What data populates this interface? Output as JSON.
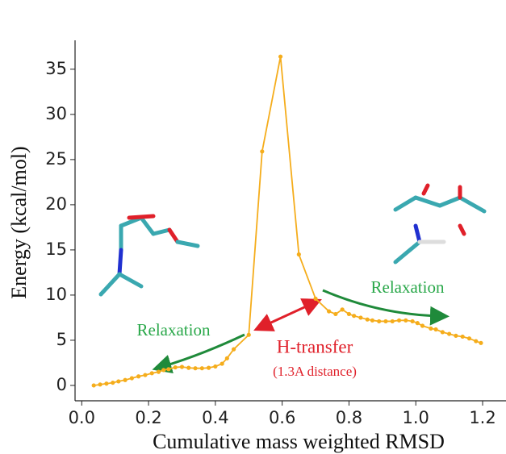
{
  "chart_data": {
    "type": "line",
    "x_label": "Cumulative mass weighted RMSD",
    "y_label": "Energy (kcal/mol)",
    "annotations": [
      "Relaxation",
      "Relaxation",
      "H-transfer",
      "(1.3A distance)"
    ],
    "series": [
      {
        "color": "#f5ad1c",
        "x": [
          0.036,
          0.055,
          0.074,
          0.093,
          0.11,
          0.13,
          0.15,
          0.17,
          0.19,
          0.21,
          0.23,
          0.245,
          0.26,
          0.28,
          0.3,
          0.32,
          0.34,
          0.36,
          0.38,
          0.4,
          0.42,
          0.435,
          0.455,
          0.5,
          0.54,
          0.595,
          0.65,
          0.7,
          0.74,
          0.76,
          0.78,
          0.8,
          0.815,
          0.835,
          0.855,
          0.87,
          0.89,
          0.91,
          0.93,
          0.95,
          0.97,
          0.99,
          1.005,
          1.02,
          1.045,
          1.06,
          1.08,
          1.1,
          1.12,
          1.14,
          1.16,
          1.18,
          1.195
        ],
        "values": [
          0,
          0.1,
          0.2,
          0.3,
          0.45,
          0.6,
          0.8,
          1.0,
          1.15,
          1.35,
          1.5,
          1.7,
          1.8,
          2.0,
          2.05,
          1.95,
          1.9,
          1.9,
          1.95,
          2.1,
          2.4,
          3.0,
          4.0,
          5.6,
          25.9,
          36.4,
          14.5,
          9.6,
          8.2,
          7.9,
          8.4,
          7.9,
          7.7,
          7.5,
          7.3,
          7.2,
          7.1,
          7.1,
          7.1,
          7.2,
          7.2,
          7.1,
          6.9,
          6.6,
          6.3,
          6.2,
          5.9,
          5.7,
          5.5,
          5.4,
          5.2,
          4.9,
          4.7
        ]
      }
    ],
    "xlim": [
      -0.02,
      1.27
    ],
    "ylim": [
      -1.7,
      38.2
    ],
    "xticks": [
      {
        "value": 0,
        "label": "0.0"
      },
      0.2,
      0.4,
      0.6,
      0.8,
      {
        "value": 1,
        "label": "1.0"
      },
      1.2
    ],
    "yticks": [
      0,
      5,
      10,
      15,
      20,
      25,
      30,
      35
    ]
  }
}
